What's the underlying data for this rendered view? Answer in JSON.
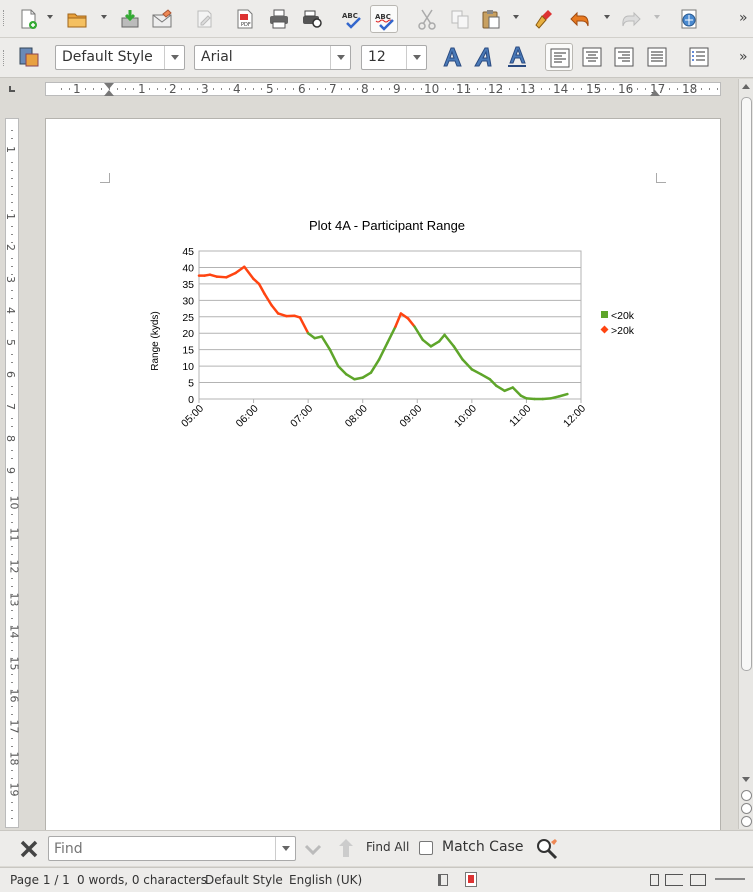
{
  "toolbar": {
    "buttons": [
      "new-icon",
      "open-icon",
      "save-icon",
      "email-icon",
      "edit-file-icon",
      "export-pdf-icon",
      "print-icon",
      "print-preview-icon",
      "spellcheck-icon",
      "autospellcheck-icon",
      "cut-icon",
      "copy-icon",
      "paste-icon",
      "clone-formatting-icon",
      "undo-icon",
      "redo-icon",
      "navigator-icon"
    ]
  },
  "format": {
    "paragraph_style": "Default Style",
    "font_name": "Arial",
    "font_size": "12"
  },
  "ruler": {
    "h_labels": [
      "1",
      "1",
      "2",
      "3",
      "4",
      "5",
      "6",
      "7",
      "8",
      "9",
      "10",
      "11",
      "12",
      "13",
      "14",
      "15",
      "16",
      "17",
      "18"
    ],
    "v_labels": [
      "1",
      "1",
      "2",
      "3",
      "4",
      "5",
      "6",
      "7",
      "8",
      "9",
      "10",
      "11",
      "12",
      "13",
      "14",
      "15",
      "16",
      "17",
      "18",
      "19"
    ]
  },
  "chart_data": {
    "type": "line",
    "title": "Plot 4A - Participant Range",
    "ylabel": "Range (kyds)",
    "xlabel": "",
    "ylim": [
      0,
      45
    ],
    "yticks": [
      "0",
      "5",
      "10",
      "15",
      "20",
      "25",
      "30",
      "35",
      "40",
      "45"
    ],
    "xticks": [
      "05:00",
      "06:00",
      "07:00",
      "08:00",
      "09:00",
      "10:00",
      "11:00",
      "12:00"
    ],
    "grid": true,
    "legend_position": "right",
    "series": [
      {
        "name": "<20k",
        "color": "#5ea52a",
        "marker": "square"
      },
      {
        "name": ">20k",
        "color": "#ff4411",
        "marker": "diamond"
      }
    ],
    "x": [
      5.0,
      5.1,
      5.2,
      5.33,
      5.5,
      5.67,
      5.83,
      6.0,
      6.1,
      6.2,
      6.33,
      6.45,
      6.6,
      6.75,
      6.85,
      7.0,
      7.12,
      7.25,
      7.4,
      7.55,
      7.7,
      7.85,
      8.0,
      8.15,
      8.3,
      8.45,
      8.6,
      8.7,
      8.83,
      8.95,
      9.1,
      9.25,
      9.4,
      9.5,
      9.67,
      9.83,
      10.0,
      10.17,
      10.33,
      10.45,
      10.6,
      10.75,
      10.9,
      11.0,
      11.15,
      11.3,
      11.45,
      11.6,
      11.75
    ],
    "y": [
      37.5,
      37.5,
      37.8,
      37.2,
      37,
      38.3,
      40.2,
      36.5,
      35,
      32,
      28.5,
      26,
      25.2,
      25.3,
      24.8,
      20,
      18.5,
      19,
      15,
      10,
      7.5,
      6,
      6.5,
      8,
      12,
      17,
      22,
      26,
      24.5,
      22,
      18,
      16,
      17.5,
      19.5,
      16,
      12,
      9,
      7.5,
      6,
      4,
      2.5,
      3.5,
      1,
      0.2,
      0,
      0,
      0.2,
      0.8,
      1.5
    ]
  },
  "findbar": {
    "placeholder": "Find",
    "find_all": "Find All",
    "match_case": "Match Case"
  },
  "status": {
    "page": "Page 1 / 1",
    "words": "0 words, 0 characters",
    "style": "Default Style",
    "language": "English (UK)"
  }
}
